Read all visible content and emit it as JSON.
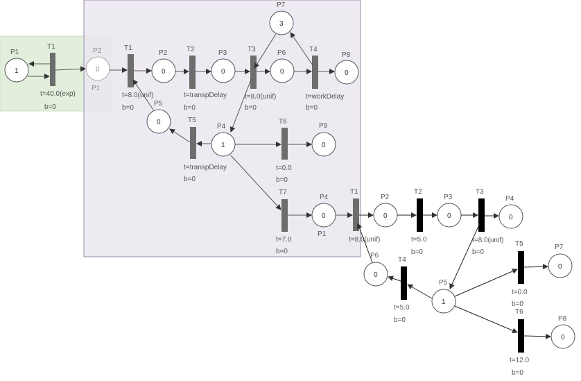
{
  "net_a": {
    "P1": {
      "label": "P1",
      "tokens": "1"
    },
    "T1": {
      "label": "T1",
      "timing": "t=40.0(exp)",
      "b": "b=0"
    }
  },
  "net_b": {
    "P2": {
      "label": "P2",
      "tokens": "0",
      "alias": "P1"
    },
    "T1": {
      "label": "T1",
      "timing": "t=8.0(unif)",
      "b": "b=0"
    },
    "P2b": {
      "label": "P2",
      "tokens": "0"
    },
    "T2": {
      "label": "T2",
      "timing": "t=transpDelay",
      "b": "b=0"
    },
    "P3": {
      "label": "P3",
      "tokens": "0"
    },
    "T3": {
      "label": "T3",
      "timing": "t=8.0(unif)",
      "b": "b=0"
    },
    "P6": {
      "label": "P6",
      "tokens": "0"
    },
    "T4": {
      "label": "T4",
      "timing": "t=workDelay",
      "b": "b=0"
    },
    "P8": {
      "label": "P8",
      "tokens": "0"
    },
    "P7": {
      "label": "P7",
      "tokens": "3"
    },
    "P5": {
      "label": "P5",
      "tokens": "0"
    },
    "T5": {
      "label": "T5",
      "timing": "t=transpDelay",
      "b": "b=0"
    },
    "P4": {
      "label": "P4",
      "tokens": "1"
    },
    "T6": {
      "label": "T6",
      "timing": "t=0.0",
      "b": "b=0"
    },
    "P9": {
      "label": "P9",
      "tokens": "0"
    },
    "T7": {
      "label": "T7",
      "timing": "t=7.0",
      "b": "b=0"
    },
    "P4b": {
      "label": "P4",
      "tokens": "0",
      "alias": "P1"
    }
  },
  "net_c": {
    "T1": {
      "label": "T1",
      "timing": "t=8.0(unif)"
    },
    "P2": {
      "label": "P2",
      "tokens": "0"
    },
    "T2": {
      "label": "T2",
      "timing": "t=5.0",
      "b": "b=0"
    },
    "P3": {
      "label": "P3",
      "tokens": "0"
    },
    "T3": {
      "label": "T3",
      "timing": "t=8.0(unif)",
      "b": "b=0"
    },
    "P4": {
      "label": "P4",
      "tokens": "0"
    },
    "P6": {
      "label": "P6",
      "tokens": "0"
    },
    "T4": {
      "label": "T4",
      "timing": "t=5.0",
      "b": "b=0"
    },
    "P5": {
      "label": "P5",
      "tokens": "1"
    },
    "T5": {
      "label": "T5",
      "timing": "t=0.0",
      "b": "b=0"
    },
    "P7": {
      "label": "P7",
      "tokens": "0"
    },
    "T6": {
      "label": "T6",
      "timing": "t=12.0",
      "b": "b=0"
    },
    "P8": {
      "label": "P8",
      "tokens": "0"
    }
  },
  "colors": {
    "green_region": "#e2efdc",
    "purple_region": "#ebe6f0",
    "purple_border": "#9a8aa8",
    "grey_transition": "#6d6d6d",
    "black_transition": "#000000"
  }
}
